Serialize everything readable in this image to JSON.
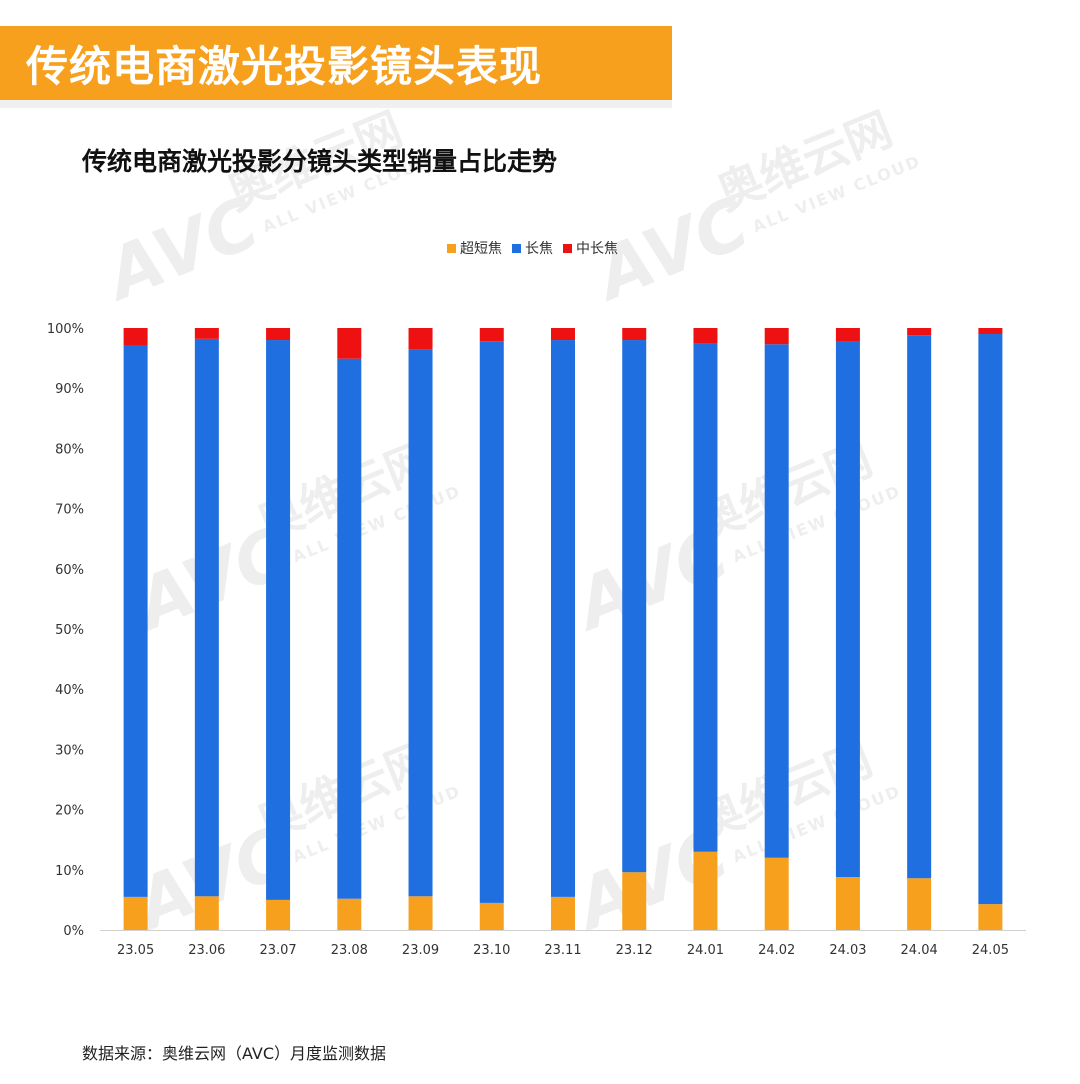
{
  "header": {
    "banner_title": "传统电商激光投影镜头表现",
    "chart_title": "传统电商激光投影分镜头类型销量占比走势",
    "source": "数据来源：奥维云网（AVC）月度监测数据"
  },
  "watermark": {
    "cn": "奥维云网",
    "en": "ALL VIEW CLOUD",
    "logo": "AVC"
  },
  "colors": {
    "ultra_short": "#f7a01e",
    "long": "#1f6fe0",
    "mid_long": "#ee1111",
    "axis": "#d0d0d0",
    "text": "#333333"
  },
  "chart_data": {
    "type": "bar",
    "stacked": true,
    "title": "传统电商激光投影分镜头类型销量占比走势",
    "categories": [
      "23.05",
      "23.06",
      "23.07",
      "23.08",
      "23.09",
      "23.10",
      "23.11",
      "23.12",
      "24.01",
      "24.02",
      "24.03",
      "24.04",
      "24.05"
    ],
    "series": [
      {
        "name": "超短焦",
        "color": "#f7a01e",
        "values": [
          5.5,
          5.6,
          5.0,
          5.2,
          5.6,
          4.5,
          5.5,
          9.6,
          13.0,
          12.0,
          8.8,
          8.6,
          4.3
        ]
      },
      {
        "name": "长焦",
        "color": "#1f6fe0",
        "values": [
          91.6,
          92.6,
          93.0,
          89.7,
          90.9,
          93.3,
          92.5,
          88.4,
          84.4,
          85.3,
          88.9,
          90.2,
          94.7
        ]
      },
      {
        "name": "中长焦",
        "color": "#ee1111",
        "values": [
          2.9,
          1.8,
          2.0,
          5.1,
          3.5,
          2.2,
          2.0,
          2.0,
          2.6,
          2.7,
          2.3,
          1.2,
          1.0
        ]
      }
    ],
    "yticks": [
      "0%",
      "10%",
      "20%",
      "30%",
      "40%",
      "50%",
      "60%",
      "70%",
      "80%",
      "90%",
      "100%"
    ],
    "ylim": [
      0,
      100
    ],
    "legend_position": "top-center",
    "grid": false
  }
}
